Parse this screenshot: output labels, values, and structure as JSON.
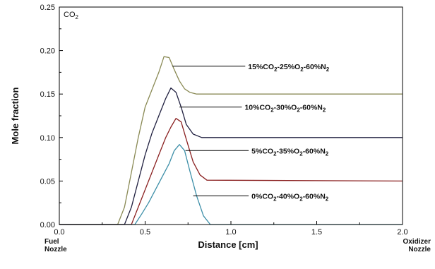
{
  "chart_data": {
    "type": "line",
    "title": "",
    "panel_label": "CO2",
    "xlabel": "Distance [cm]",
    "ylabel": "Mole fraction",
    "xlim": [
      0.0,
      2.0
    ],
    "ylim": [
      0.0,
      0.25
    ],
    "x_ticks": [
      "0.0",
      "0.5",
      "1.0",
      "1.5",
      "2.0"
    ],
    "y_ticks": [
      "0.00",
      "0.05",
      "0.10",
      "0.15",
      "0.20",
      "0.25"
    ],
    "grid": false,
    "x_end_labels": {
      "left": [
        "Fuel",
        "Nozzle"
      ],
      "right": [
        "Oxidizer",
        "Nozzle"
      ]
    },
    "series": [
      {
        "name": "15%CO2-25%O2-60%N2",
        "color": "#8a8a55",
        "x": [
          0.0,
          0.34,
          0.38,
          0.42,
          0.46,
          0.5,
          0.54,
          0.58,
          0.61,
          0.64,
          0.67,
          0.7,
          0.73,
          0.76,
          0.8,
          2.0
        ],
        "y": [
          0.0,
          0.0,
          0.02,
          0.06,
          0.1,
          0.135,
          0.155,
          0.175,
          0.193,
          0.192,
          0.178,
          0.165,
          0.156,
          0.152,
          0.15,
          0.15
        ]
      },
      {
        "name": "10%CO2-30%O2-60%N2",
        "color": "#202040",
        "x": [
          0.0,
          0.38,
          0.42,
          0.46,
          0.5,
          0.54,
          0.58,
          0.62,
          0.65,
          0.68,
          0.71,
          0.74,
          0.78,
          0.83,
          2.0
        ],
        "y": [
          0.0,
          0.0,
          0.02,
          0.05,
          0.08,
          0.105,
          0.125,
          0.145,
          0.157,
          0.152,
          0.135,
          0.115,
          0.104,
          0.1,
          0.1
        ]
      },
      {
        "name": "5%CO2-35%O2-60%N2",
        "color": "#8a2020",
        "x": [
          0.0,
          0.42,
          0.46,
          0.5,
          0.54,
          0.58,
          0.62,
          0.65,
          0.68,
          0.71,
          0.74,
          0.78,
          0.82,
          0.86,
          2.0
        ],
        "y": [
          0.0,
          0.0,
          0.02,
          0.04,
          0.06,
          0.08,
          0.1,
          0.112,
          0.122,
          0.118,
          0.098,
          0.072,
          0.057,
          0.051,
          0.05
        ]
      },
      {
        "name": "0%CO2-40%O2-60%N2",
        "color": "#3d8fa8",
        "x": [
          0.0,
          0.44,
          0.48,
          0.52,
          0.56,
          0.6,
          0.64,
          0.67,
          0.7,
          0.73,
          0.76,
          0.8,
          0.84,
          0.88,
          2.0
        ],
        "y": [
          0.0,
          0.0,
          0.012,
          0.025,
          0.04,
          0.055,
          0.07,
          0.085,
          0.092,
          0.085,
          0.062,
          0.033,
          0.01,
          0.0,
          0.0
        ]
      }
    ],
    "annotations": [
      {
        "series": 0,
        "parts": [
          {
            "t": "15%CO",
            "sub": false
          },
          {
            "t": "2",
            "sub": true
          },
          {
            "t": "-25%O",
            "sub": false
          },
          {
            "t": "2",
            "sub": true
          },
          {
            "t": "-60%N",
            "sub": false
          },
          {
            "t": "2",
            "sub": true
          }
        ],
        "point": [
          0.66,
          0.182
        ],
        "text_at": [
          1.1,
          0.182
        ]
      },
      {
        "series": 1,
        "parts": [
          {
            "t": "10%CO",
            "sub": false
          },
          {
            "t": "2",
            "sub": true
          },
          {
            "t": "-30%O",
            "sub": false
          },
          {
            "t": "2",
            "sub": true
          },
          {
            "t": "-60%N",
            "sub": false
          },
          {
            "t": "2",
            "sub": true
          }
        ],
        "point": [
          0.7,
          0.135
        ],
        "text_at": [
          1.08,
          0.135
        ]
      },
      {
        "series": 2,
        "parts": [
          {
            "t": "5%CO",
            "sub": false
          },
          {
            "t": "2",
            "sub": true
          },
          {
            "t": "-35%O",
            "sub": false
          },
          {
            "t": "2",
            "sub": true
          },
          {
            "t": "-60%N",
            "sub": false
          },
          {
            "t": "2",
            "sub": true
          }
        ],
        "point": [
          0.735,
          0.085
        ],
        "text_at": [
          1.12,
          0.085
        ]
      },
      {
        "series": 3,
        "parts": [
          {
            "t": "0%CO",
            "sub": false
          },
          {
            "t": "2",
            "sub": true
          },
          {
            "t": "-40%O",
            "sub": false
          },
          {
            "t": "2",
            "sub": true
          },
          {
            "t": "-60%N",
            "sub": false
          },
          {
            "t": "2",
            "sub": true
          }
        ],
        "point": [
          0.78,
          0.033
        ],
        "text_at": [
          1.12,
          0.033
        ]
      }
    ]
  }
}
